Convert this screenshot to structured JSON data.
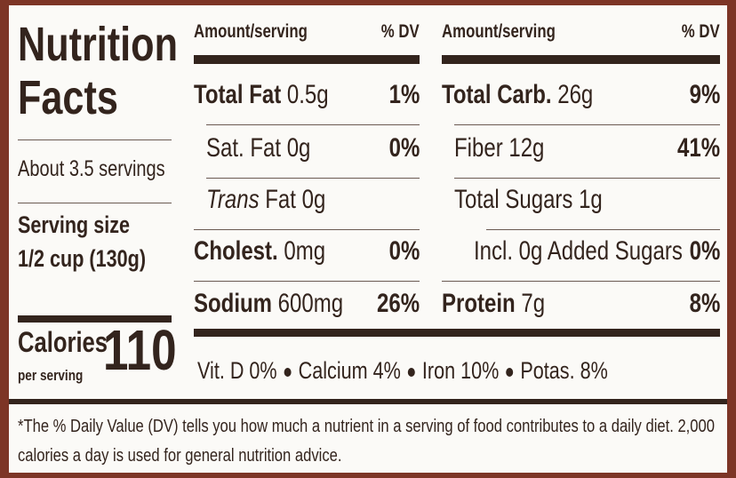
{
  "title_lines": [
    "Nutrition",
    "Facts"
  ],
  "servings": "About 3.5 servings",
  "serving_size_label": "Serving size",
  "serving_size": "1/2 cup (130g)",
  "calories_label": "Calories",
  "per_serving": "per serving",
  "calories": 110,
  "columns": [
    {
      "header_amount": "Amount/serving",
      "header_dv": "% DV",
      "rows": [
        {
          "name": "Total Fat",
          "amount": "0.5g",
          "dv": "1%"
        },
        {
          "name": "Sat. Fat",
          "amount": "0g",
          "dv": "0%"
        },
        {
          "name": "Trans",
          "amount": "Fat 0g"
        },
        {
          "name": "Cholest.",
          "amount": "0mg",
          "dv": "0%"
        },
        {
          "name": "Sodium",
          "amount": "600mg",
          "dv": "26%"
        }
      ]
    },
    {
      "header_amount": "Amount/serving",
      "header_dv": "% DV",
      "rows": [
        {
          "name": "Total Carb.",
          "amount": "26g",
          "dv": "9%"
        },
        {
          "name": "Fiber",
          "amount": "12g",
          "dv": "41%"
        },
        {
          "name": "Total Sugars",
          "amount": "1g"
        },
        {
          "name": "Incl. 0g Added Sugars",
          "amount": "",
          "dv": "0%"
        },
        {
          "name": "Protein",
          "amount": "7g",
          "dv": "8%"
        }
      ]
    }
  ],
  "vitamins": [
    "Vit. D 0%",
    "Calcium 4%",
    "Iron 10%",
    "Potas. 8%"
  ],
  "footnote": "*The % Daily Value (DV) tells you how much a nutrient in a serving of food contributes to a daily diet. 2,000 calories a day is used for general nutrition advice."
}
